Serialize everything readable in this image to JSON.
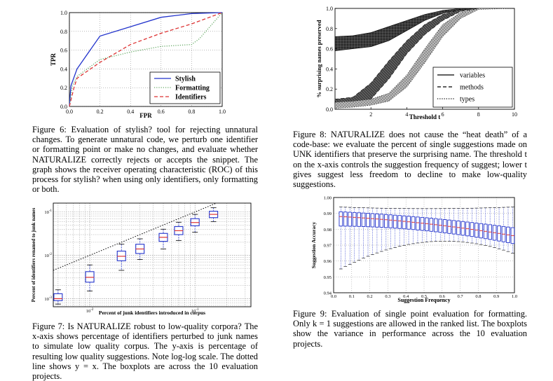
{
  "figures": [
    {
      "id": "fig6",
      "caption": "Figure 6: Evaluation of stylish? tool for rejecting unnatural changes. To generate unnatural code, we perturb one identifier or formatting point or make no changes, and evaluate whether NATURALIZE correctly rejects or accepts the snippet. The graph shows the receiver operating characteristic (ROC) of this process for stylish? when using only identifiers, only formatting or both.",
      "chart_data": {
        "type": "line",
        "xlabel": "FPR",
        "ylabel": "TPR",
        "xlim": [
          0,
          1
        ],
        "ylim": [
          0,
          1
        ],
        "xticks": [
          "0.0",
          "0.2",
          "0.4",
          "0.6",
          "0.8",
          "1.0"
        ],
        "yticks": [
          "0.0",
          "0.2",
          "0.4",
          "0.6",
          "0.8",
          "1.0"
        ],
        "grid": true,
        "legend": "bottom-right",
        "series": [
          {
            "name": "Stylish",
            "color": "#2233cc",
            "dash": "solid",
            "x": [
              0,
              0.01,
              0.05,
              0.2,
              0.4,
              0.6,
              0.8,
              1.0
            ],
            "y": [
              0,
              0.22,
              0.4,
              0.75,
              0.85,
              0.95,
              0.99,
              1.0
            ]
          },
          {
            "name": "Formatting",
            "color": "#66aa66",
            "dash": "dotted",
            "x": [
              0,
              0.02,
              0.05,
              0.2,
              0.4,
              0.6,
              0.8,
              0.85,
              1.0
            ],
            "y": [
              0,
              0.22,
              0.32,
              0.5,
              0.58,
              0.64,
              0.66,
              0.72,
              1.0
            ]
          },
          {
            "name": "Identifiers",
            "color": "#dd3333",
            "dash": "dashed",
            "x": [
              0,
              0.03,
              0.05,
              0.2,
              0.4,
              0.6,
              0.8,
              1.0
            ],
            "y": [
              0,
              0.2,
              0.3,
              0.47,
              0.66,
              0.78,
              0.88,
              1.0
            ]
          }
        ]
      }
    },
    {
      "id": "fig8",
      "caption": "Figure 8: NATURALIZE does not cause the “heat death” of a code-base: we evaluate the percent of single suggestions made on UNK identifiers that preserve the surprising name. The threshold t on the x-axis controls the suggestion frequency of suggest; lower t gives suggest less freedom to decline to make low-quality suggestions.",
      "chart_data": {
        "type": "area",
        "xlabel": "Threshold t",
        "ylabel": "% surprising names preserved",
        "xlim": [
          0,
          10
        ],
        "ylim": [
          0,
          1
        ],
        "xticks": [
          "2",
          "4",
          "6",
          "8",
          "10"
        ],
        "yticks": [
          "0.0",
          "0.2",
          "0.4",
          "0.6",
          "0.8",
          "1.0"
        ],
        "legend": "bottom-right",
        "series": [
          {
            "name": "variables",
            "dash": "solid",
            "fill": "#1a1a1a",
            "x": [
              0,
              1,
              2,
              3,
              4,
              5,
              6,
              7,
              8,
              10
            ],
            "lower": [
              0.58,
              0.6,
              0.62,
              0.68,
              0.78,
              0.88,
              0.95,
              0.99,
              1.0,
              1.0
            ],
            "upper": [
              0.72,
              0.73,
              0.76,
              0.82,
              0.88,
              0.94,
              0.98,
              1.0,
              1.0,
              1.0
            ]
          },
          {
            "name": "methods",
            "dash": "dashed",
            "fill": "#555555",
            "x": [
              0,
              1,
              2,
              3,
              4,
              5,
              6,
              7,
              8,
              10
            ],
            "lower": [
              0.05,
              0.06,
              0.1,
              0.3,
              0.55,
              0.74,
              0.88,
              0.97,
              1.0,
              1.0
            ],
            "upper": [
              0.1,
              0.12,
              0.26,
              0.48,
              0.68,
              0.84,
              0.94,
              0.99,
              1.0,
              1.0
            ]
          },
          {
            "name": "types",
            "dash": "dotted",
            "fill": "#9a9a9a",
            "x": [
              0,
              1,
              2,
              3,
              4,
              5,
              6,
              7,
              8,
              10
            ],
            "lower": [
              0.01,
              0.02,
              0.04,
              0.08,
              0.22,
              0.46,
              0.72,
              0.9,
              0.99,
              1.0
            ],
            "upper": [
              0.07,
              0.08,
              0.1,
              0.16,
              0.34,
              0.6,
              0.84,
              0.96,
              1.0,
              1.0
            ]
          }
        ]
      }
    },
    {
      "id": "fig7",
      "caption": "Figure 7: Is NATURALIZE robust to low-quality corpora? The x-axis shows percentage of identifiers perturbed to junk names to simulate low quality corpus. The y-axis is percentage of resulting low quality suggestions. Note log-log scale. The dotted line shows y = x. The boxplots are across the 10 evaluation projects.",
      "chart_data": {
        "type": "box",
        "xlabel": "Percent of junk identifiers introduced in corpus",
        "ylabel": "Percent of identifiers renamed to junk names",
        "xscale": "log",
        "yscale": "log",
        "xlim": [
          0.0045,
          0.34
        ],
        "ylim": [
          0.00065,
          0.16
        ],
        "xticks": [
          "10^-2",
          "10^-1"
        ],
        "yticks": [
          "10^-3",
          "10^-2",
          "10^-1"
        ],
        "reference_line": "y = x",
        "boxes": [
          {
            "x": 0.005,
            "whislo": 0.00075,
            "q1": 0.0009,
            "med": 0.001,
            "q3": 0.0013,
            "whishi": 0.0016
          },
          {
            "x": 0.01,
            "whislo": 0.0015,
            "q1": 0.0024,
            "med": 0.0031,
            "q3": 0.0042,
            "whishi": 0.006
          },
          {
            "x": 0.02,
            "whislo": 0.0045,
            "q1": 0.0075,
            "med": 0.0095,
            "q3": 0.0125,
            "whishi": 0.018
          },
          {
            "x": 0.03,
            "whislo": 0.008,
            "q1": 0.011,
            "med": 0.014,
            "q3": 0.018,
            "whishi": 0.024
          },
          {
            "x": 0.05,
            "whislo": 0.014,
            "q1": 0.021,
            "med": 0.026,
            "q3": 0.032,
            "whishi": 0.04
          },
          {
            "x": 0.07,
            "whislo": 0.022,
            "q1": 0.03,
            "med": 0.037,
            "q3": 0.046,
            "whishi": 0.058
          },
          {
            "x": 0.1,
            "whislo": 0.034,
            "q1": 0.048,
            "med": 0.057,
            "q3": 0.07,
            "whishi": 0.088
          },
          {
            "x": 0.15,
            "whislo": 0.06,
            "q1": 0.074,
            "med": 0.088,
            "q3": 0.104,
            "whishi": 0.125
          }
        ]
      }
    },
    {
      "id": "fig9",
      "caption": "Figure 9: Evaluation of single point evaluation for formatting. Only k = 1 suggestions are allowed in the ranked list. The boxplots show the variance in performance across the 10 evaluation projects.",
      "chart_data": {
        "type": "box",
        "xlabel": "Suggestion Frequency",
        "ylabel": "Suggestion Accuracy",
        "xlim": [
          0,
          1
        ],
        "ylim": [
          0.94,
          1.0
        ],
        "xticks": [
          "0.0",
          "0.1",
          "0.2",
          "0.3",
          "0.4",
          "0.5",
          "0.6",
          "0.7",
          "0.8",
          "0.9",
          "1.0"
        ],
        "yticks": [
          "0.94",
          "0.95",
          "0.96",
          "0.97",
          "0.98",
          "0.99",
          "1.00"
        ],
        "grid": true,
        "box_color": "#2233cc",
        "median_color": "#dd3333",
        "box_count": 39,
        "median_start": 0.988,
        "median_end": 0.976,
        "q1_start": 0.982,
        "q1_end": 0.971,
        "q3_start": 0.991,
        "q3_end": 0.981,
        "whishi": 0.993,
        "whislo_start": 0.955,
        "whislo_end": 0.965
      }
    }
  ]
}
